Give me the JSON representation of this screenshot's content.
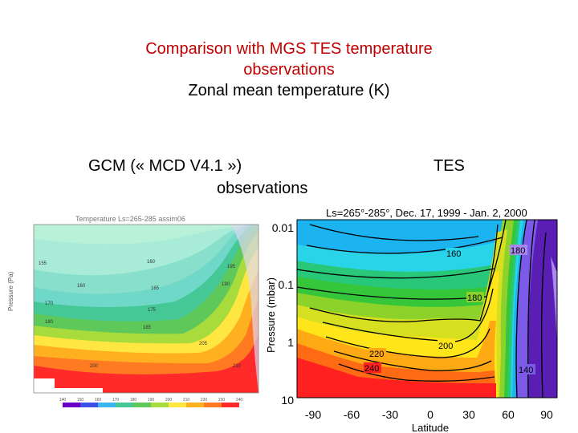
{
  "title": {
    "line1": "Comparison with MGS TES temperature",
    "line2": "observations",
    "line3": "Zonal mean temperature (K)"
  },
  "headings": {
    "gcm": "GCM (« MCD V4.1 »)",
    "observations": "observations",
    "tes": "TES"
  },
  "left_plot": {
    "title": "Temperature  Ls=265-285   assim06",
    "ylabel": "Pressure (Pa)",
    "contour_labels": [
      "155",
      "160",
      "160",
      "165",
      "170",
      "175",
      "180",
      "185",
      "190",
      "195",
      "200",
      "205",
      "210"
    ],
    "colorbar_ticks": [
      "140",
      "150",
      "160",
      "170",
      "180",
      "190",
      "200",
      "210",
      "220",
      "230",
      "240"
    ]
  },
  "right_plot": {
    "title": "Ls=265°-285°, Dec. 17, 1999 - Jan. 2, 2000",
    "ylabel": "Pressure (mbar)",
    "xlabel": "Latitude",
    "yticks": [
      "0.01",
      "0.1",
      "1",
      "10"
    ],
    "xticks": [
      "-90",
      "-60",
      "-30",
      "0",
      "30",
      "60",
      "90"
    ],
    "contour_labels": [
      "160",
      "180",
      "180",
      "200",
      "220",
      "240",
      "140"
    ]
  },
  "colors": {
    "title_red": "#c00000",
    "hot": "#ff1a1a",
    "cold": "#6600cc"
  }
}
